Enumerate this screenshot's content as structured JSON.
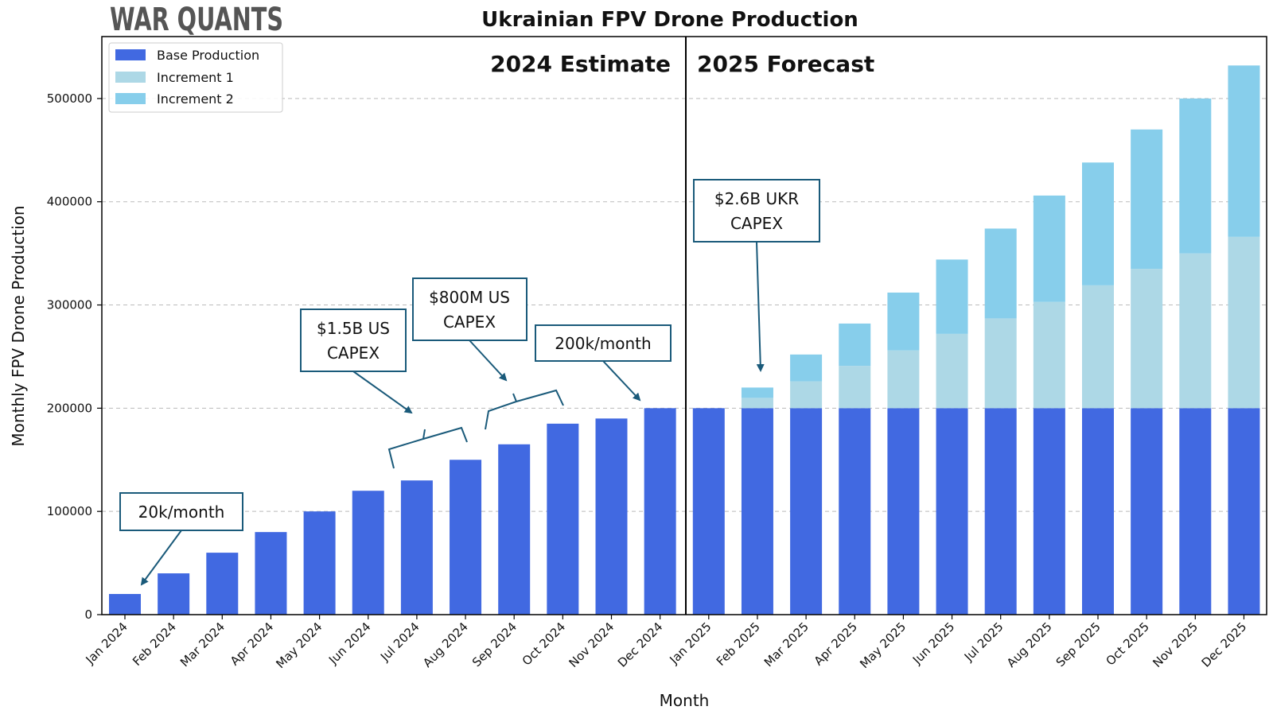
{
  "logo": "WAR QUANTS",
  "chart_data": {
    "type": "bar",
    "title": "Ukrainian FPV Drone Production",
    "xlabel": "Month",
    "ylabel": "Monthly FPV Drone Production",
    "ylim": [
      0,
      560000
    ],
    "yticks": [
      0,
      100000,
      200000,
      300000,
      400000,
      500000
    ],
    "ytick_labels": [
      "0",
      "100000",
      "200000",
      "300000",
      "400000",
      "500000"
    ],
    "grid": "horizontal dashed",
    "legend_position": "top-left",
    "stacked": true,
    "categories": [
      "Jan 2024",
      "Feb 2024",
      "Mar 2024",
      "Apr 2024",
      "May 2024",
      "Jun 2024",
      "Jul 2024",
      "Aug 2024",
      "Sep 2024",
      "Oct 2024",
      "Nov 2024",
      "Dec 2024",
      "Jan 2025",
      "Feb 2025",
      "Mar 2025",
      "Apr 2025",
      "May 2025",
      "Jun 2025",
      "Jul 2025",
      "Aug 2025",
      "Sep 2025",
      "Oct 2025",
      "Nov 2025",
      "Dec 2025"
    ],
    "series": [
      {
        "name": "Base Production",
        "color": "#4169e1",
        "values": [
          20000,
          40000,
          60000,
          80000,
          100000,
          120000,
          130000,
          150000,
          165000,
          185000,
          190000,
          200000,
          200000,
          200000,
          200000,
          200000,
          200000,
          200000,
          200000,
          200000,
          200000,
          200000,
          200000,
          200000
        ]
      },
      {
        "name": "Increment 1",
        "color": "#add8e6",
        "values": [
          0,
          0,
          0,
          0,
          0,
          0,
          0,
          0,
          0,
          0,
          0,
          0,
          0,
          10000,
          26000,
          41000,
          56000,
          72000,
          87000,
          103000,
          119000,
          135000,
          150000,
          166000
        ]
      },
      {
        "name": "Increment 2",
        "color": "#87ceeb",
        "values": [
          0,
          0,
          0,
          0,
          0,
          0,
          0,
          0,
          0,
          0,
          0,
          0,
          0,
          10000,
          26000,
          41000,
          56000,
          72000,
          87000,
          103000,
          119000,
          135000,
          150000,
          166000
        ]
      }
    ],
    "period_labels": [
      "2024 Estimate",
      "2025 Forecast"
    ],
    "annotations": [
      {
        "lines": [
          "20k/month"
        ]
      },
      {
        "lines": [
          "$1.5B US",
          "CAPEX"
        ]
      },
      {
        "lines": [
          "$800M US",
          "CAPEX"
        ]
      },
      {
        "lines": [
          "200k/month"
        ]
      },
      {
        "lines": [
          "$2.6B UKR",
          "CAPEX"
        ]
      }
    ],
    "colors": {
      "annotation_border": "#1a5a7a",
      "arrow": "#1a5a7a"
    }
  }
}
